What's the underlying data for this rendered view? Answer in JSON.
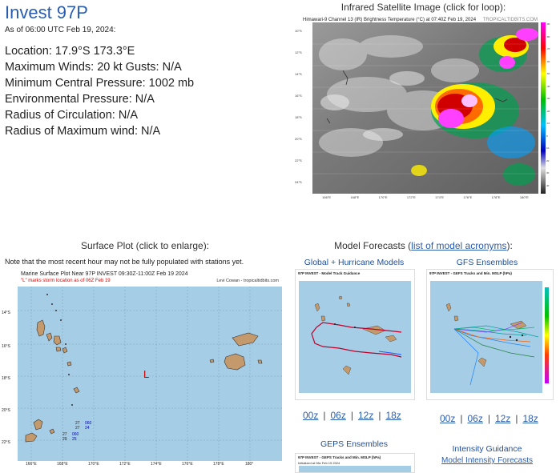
{
  "storm": {
    "title": "Invest 97P",
    "as_of": "As of 06:00 UTC Feb 19, 2024:",
    "location": "Location: 17.9°S 173.3°E",
    "winds": "Maximum Winds: 20 kt  Gusts: N/A",
    "pressure": "Minimum Central Pressure: 1002 mb",
    "env_pressure": "Environmental Pressure: N/A",
    "radius_circ": "Radius of Circulation: N/A",
    "radius_max": "Radius of Maximum wind: N/A"
  },
  "ir": {
    "heading": "Infrared Satellite Image (click for loop):",
    "caption": "Himawari-9 Channel 13 (IR) Brightness Temperature (°C) at 07:40Z Feb 19, 2024",
    "credit": "TROPICALTIDBITS.COM",
    "lat_labels": [
      "10°S",
      "12°S",
      "14°S",
      "16°S",
      "18°S",
      "20°S",
      "22°S",
      "24°S"
    ],
    "lon_labels": [
      "166°E",
      "168°E",
      "170°E",
      "172°E",
      "174°E",
      "176°E",
      "178°E",
      "180°E"
    ],
    "scale_labels": [
      "-90",
      "-80",
      "-70",
      "-60",
      "-50",
      "-40",
      "-30",
      "-20",
      "-10",
      "0",
      "10",
      "20",
      "30",
      "40"
    ]
  },
  "surface": {
    "heading": "Surface Plot (click to enlarge):",
    "note": "Note that the most recent hour may not be fully populated with stations yet.",
    "map_title": "Marine Surface Plot Near 97P INVEST 09:30Z-11:00Z Feb 19 2024",
    "map_subtitle": "\"L\" marks storm location as of 06Z Feb 19",
    "credit": "Levi Cowan - tropicaltidbits.com",
    "storm_marker": "L",
    "lat_labels": [
      "14°S",
      "16°S",
      "18°S",
      "20°S",
      "22°S"
    ],
    "lon_labels": [
      "166°E",
      "168°E",
      "170°E",
      "172°E",
      "174°E",
      "176°E",
      "178°E",
      "180°"
    ],
    "stations": [
      {
        "temp": "27",
        "dew": "060",
        "extra": "27",
        "val": "24"
      },
      {
        "temp": "27",
        "dew": "060",
        "extra": "29",
        "val": "25"
      }
    ]
  },
  "models": {
    "heading_prefix": "Model Forecasts (",
    "heading_link": "list of model acronyms",
    "heading_suffix": "):",
    "global_title": "Global + Hurricane Models",
    "global_map_title": "97P INVEST - Model Track Guidance",
    "global_map_sub": "Initialized at 06z Feb 19 2024",
    "gfs_title": "GFS Ensembles",
    "gfs_map_title": "97P INVEST - GEFS Tracks and Min. MSLP (hPa)",
    "gfs_map_sub": "Initialized at 06z Feb 19 2024",
    "runs_left": [
      "00z",
      "06z",
      "12z",
      "18z"
    ],
    "runs_right": [
      "00z",
      "06z",
      "12z",
      "18z"
    ],
    "geps_title": "GEPS Ensembles",
    "geps_map_title": "97P INVEST - GEPS Tracks and Min. MSLP (hPa)",
    "geps_map_sub": "Initialized at 06z Feb 19 2024",
    "intensity_title": "Intensity Guidance",
    "intensity_link": "Model Intensity Forecasts"
  }
}
